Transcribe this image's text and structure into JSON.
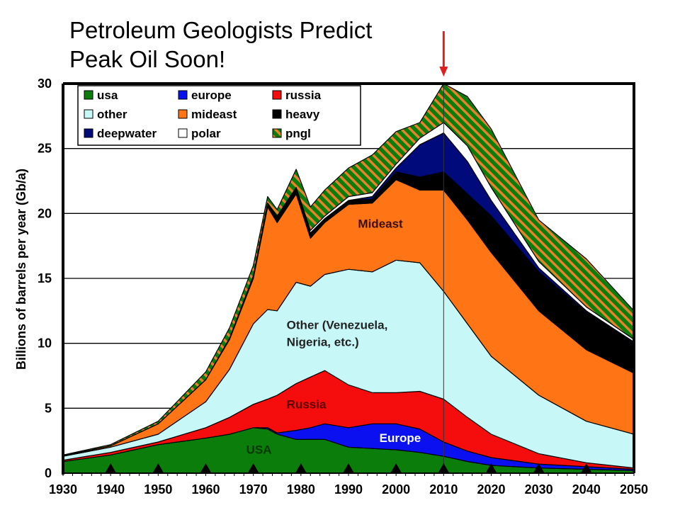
{
  "title_lines": [
    "Petroleum Geologists Predict",
    "Peak Oil Soon!"
  ],
  "chart_data": {
    "type": "area",
    "stacked": true,
    "ylabel": "Billions of barrels per year (Gb/a)",
    "xlabel": "",
    "xlim": [
      1930,
      2050
    ],
    "ylim": [
      0,
      30
    ],
    "x_ticks": [
      1930,
      1940,
      1950,
      1960,
      1970,
      1980,
      1990,
      2000,
      2010,
      2020,
      2030,
      2040,
      2050
    ],
    "y_ticks": [
      0,
      5,
      10,
      15,
      20,
      25,
      30
    ],
    "grid": "horizontal",
    "legend_position": "top-left",
    "x": [
      1930,
      1940,
      1950,
      1960,
      1965,
      1970,
      1973,
      1975,
      1979,
      1982,
      1985,
      1990,
      1995,
      2000,
      2005,
      2010,
      2015,
      2020,
      2030,
      2040,
      2050
    ],
    "series": [
      {
        "name": "usa",
        "color": "#0a7d0a",
        "values": [
          0.9,
          1.4,
          2.2,
          2.7,
          3.0,
          3.5,
          3.4,
          3.0,
          2.6,
          2.6,
          2.6,
          2.0,
          1.9,
          1.8,
          1.6,
          1.3,
          0.9,
          0.6,
          0.4,
          0.3,
          0.2
        ]
      },
      {
        "name": "europe",
        "color": "#0a10ef",
        "values": [
          0,
          0,
          0,
          0,
          0,
          0,
          0.1,
          0.1,
          0.7,
          0.9,
          1.2,
          1.5,
          1.9,
          2.0,
          1.8,
          1.1,
          0.8,
          0.6,
          0.3,
          0.2,
          0.1
        ]
      },
      {
        "name": "russia",
        "color": "#f50c0c",
        "values": [
          0.1,
          0.2,
          0.2,
          0.8,
          1.3,
          1.8,
          2.2,
          2.9,
          3.6,
          3.9,
          4.1,
          3.3,
          2.4,
          2.4,
          2.9,
          3.3,
          2.6,
          1.8,
          0.8,
          0.3,
          0.1
        ]
      },
      {
        "name": "other",
        "color": "#c8f7f7",
        "values": [
          0.3,
          0.4,
          0.6,
          2.0,
          3.7,
          6.2,
          6.9,
          6.5,
          7.8,
          7.0,
          7.4,
          8.9,
          9.3,
          10.2,
          9.9,
          8.3,
          7.2,
          6.0,
          4.5,
          3.2,
          2.6
        ]
      },
      {
        "name": "mideast",
        "color": "#ff7414",
        "values": [
          0.05,
          0.1,
          0.8,
          1.7,
          2.3,
          3.5,
          7.9,
          6.8,
          6.8,
          3.7,
          4.0,
          5.0,
          5.3,
          6.2,
          5.6,
          7.8,
          8.0,
          8.0,
          6.5,
          5.5,
          4.7
        ]
      },
      {
        "name": "heavy",
        "color": "#000000",
        "values": [
          0,
          0,
          0,
          0,
          0.1,
          0.2,
          0.3,
          0.5,
          0.4,
          0.4,
          0.3,
          0.3,
          0.3,
          0.6,
          1.0,
          1.4,
          2.0,
          2.8,
          3.0,
          2.9,
          2.3
        ]
      },
      {
        "name": "deepwater",
        "color": "#000a7a",
        "values": [
          0,
          0,
          0,
          0,
          0,
          0,
          0,
          0,
          0,
          0,
          0,
          0,
          0.2,
          0.3,
          2.5,
          3.0,
          2.5,
          1.2,
          0.3,
          0.1,
          0.1
        ]
      },
      {
        "name": "polar",
        "color": "#ffffff",
        "values": [
          0,
          0,
          0,
          0,
          0,
          0,
          0,
          0,
          0.1,
          0.2,
          0.2,
          0.3,
          0.3,
          0.3,
          0.5,
          0.8,
          1.2,
          1.0,
          0.5,
          0.3,
          0.2
        ]
      },
      {
        "name": "pngl",
        "color": "#0a7d0a",
        "stripe_color": "#e8822a",
        "values": [
          0.05,
          0.1,
          0.2,
          0.6,
          0.8,
          0.8,
          0.5,
          0.5,
          1.4,
          1.8,
          2.0,
          2.2,
          2.9,
          2.5,
          1.2,
          3.0,
          3.8,
          4.5,
          3.2,
          3.7,
          2.2
        ]
      }
    ],
    "annotations": [
      {
        "text": "Mideast",
        "x": 1992,
        "y": 18.9,
        "color": "#3a0f00"
      },
      {
        "text": "Other (Venezuela,",
        "x": 1977,
        "y": 11.1,
        "color": "#222222"
      },
      {
        "text": "Nigeria, etc.)",
        "x": 1977,
        "y": 9.8,
        "color": "#222222"
      },
      {
        "text": "Russia",
        "x": 1977,
        "y": 5.0,
        "color": "#5a0000"
      },
      {
        "text": "USA",
        "x": 1968.5,
        "y": 1.5,
        "color": "#053805"
      },
      {
        "text": "Europe",
        "x": 1996.5,
        "y": 2.4,
        "color": "#ffffff"
      }
    ],
    "peak_marker": {
      "year": 2010,
      "value": 30,
      "arrow_color": "#e02020"
    },
    "decade_markers": [
      1940,
      1950,
      1960,
      1970,
      1980,
      1990,
      2000,
      2010,
      2020,
      2030,
      2040
    ]
  }
}
